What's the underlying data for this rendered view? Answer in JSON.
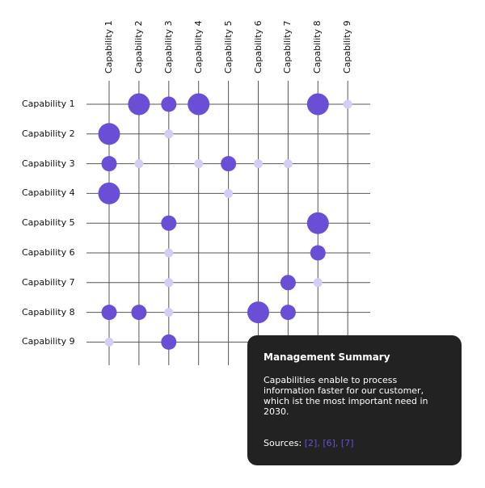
{
  "chart_data": {
    "type": "matrix-bubble",
    "title": "",
    "columns": [
      "Capability 1",
      "Capability 2",
      "Capability 3",
      "Capability 4",
      "Capability 5",
      "Capability 6",
      "Capability 7",
      "Capability 8",
      "Capability 9"
    ],
    "rows": [
      "Capability 1",
      "Capability 2",
      "Capability 3",
      "Capability 4",
      "Capability 5",
      "Capability 6",
      "Capability 7",
      "Capability 8",
      "Capability 9"
    ],
    "size_scale": {
      "0": "none",
      "1": "small light",
      "2": "medium",
      "3": "large"
    },
    "points": [
      {
        "row": "Capability 1",
        "col": "Capability 2",
        "size": 3
      },
      {
        "row": "Capability 1",
        "col": "Capability 3",
        "size": 2
      },
      {
        "row": "Capability 1",
        "col": "Capability 4",
        "size": 3
      },
      {
        "row": "Capability 1",
        "col": "Capability 8",
        "size": 3
      },
      {
        "row": "Capability 1",
        "col": "Capability 9",
        "size": 1
      },
      {
        "row": "Capability 2",
        "col": "Capability 1",
        "size": 3
      },
      {
        "row": "Capability 2",
        "col": "Capability 3",
        "size": 1
      },
      {
        "row": "Capability 3",
        "col": "Capability 1",
        "size": 2
      },
      {
        "row": "Capability 3",
        "col": "Capability 2",
        "size": 1
      },
      {
        "row": "Capability 3",
        "col": "Capability 4",
        "size": 1
      },
      {
        "row": "Capability 3",
        "col": "Capability 5",
        "size": 2
      },
      {
        "row": "Capability 3",
        "col": "Capability 6",
        "size": 1
      },
      {
        "row": "Capability 3",
        "col": "Capability 7",
        "size": 1
      },
      {
        "row": "Capability 4",
        "col": "Capability 1",
        "size": 3
      },
      {
        "row": "Capability 4",
        "col": "Capability 5",
        "size": 1
      },
      {
        "row": "Capability 5",
        "col": "Capability 3",
        "size": 2
      },
      {
        "row": "Capability 5",
        "col": "Capability 8",
        "size": 3
      },
      {
        "row": "Capability 6",
        "col": "Capability 3",
        "size": 1
      },
      {
        "row": "Capability 6",
        "col": "Capability 8",
        "size": 2
      },
      {
        "row": "Capability 7",
        "col": "Capability 3",
        "size": 1
      },
      {
        "row": "Capability 7",
        "col": "Capability 7",
        "size": 2
      },
      {
        "row": "Capability 7",
        "col": "Capability 8",
        "size": 1
      },
      {
        "row": "Capability 8",
        "col": "Capability 1",
        "size": 2
      },
      {
        "row": "Capability 8",
        "col": "Capability 2",
        "size": 2
      },
      {
        "row": "Capability 8",
        "col": "Capability 3",
        "size": 1
      },
      {
        "row": "Capability 8",
        "col": "Capability 6",
        "size": 3
      },
      {
        "row": "Capability 8",
        "col": "Capability 7",
        "size": 2
      },
      {
        "row": "Capability 9",
        "col": "Capability 1",
        "size": 1
      },
      {
        "row": "Capability 9",
        "col": "Capability 3",
        "size": 2
      }
    ],
    "colors": {
      "strong": "#6a4fd6",
      "light": "#d4cdf4",
      "grid": "#555555"
    },
    "grid": true
  },
  "summary": {
    "title": "Management Summary",
    "body": "Capabilities enable to process information faster for our customer, which ist the most important need in 2030.",
    "sources_label": "Sources:",
    "sources": [
      "[2]",
      "[6]",
      "[7]"
    ]
  }
}
